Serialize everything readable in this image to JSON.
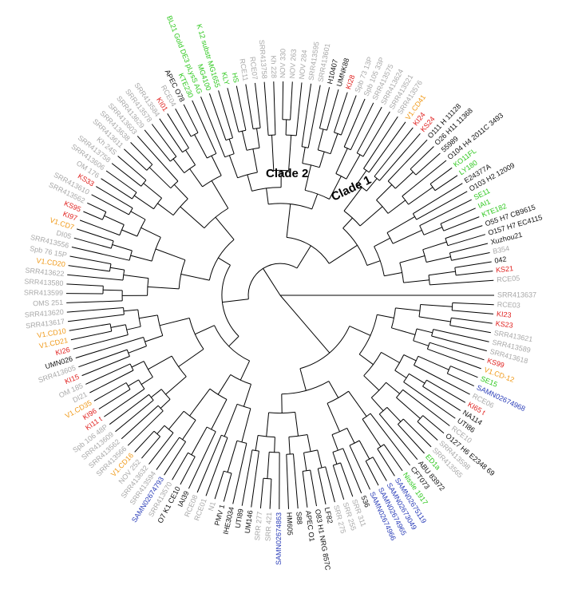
{
  "colors": {
    "black": "#111111",
    "gray": "#a9a9a9",
    "red": "#e0201e",
    "orange": "#f09a1a",
    "green": "#2ec81e",
    "blue": "#2a3db8"
  },
  "clades": [
    {
      "name": "Clade 2"
    },
    {
      "name": "Clade 1"
    }
  ],
  "leaves": [
    {
      "label": "SRR413637",
      "color": "gray"
    },
    {
      "label": "RCE03",
      "color": "gray"
    },
    {
      "label": "KI23",
      "color": "red"
    },
    {
      "label": "KS23",
      "color": "red"
    },
    {
      "label": "SRR413621",
      "color": "gray"
    },
    {
      "label": "SRR413589",
      "color": "gray"
    },
    {
      "label": "SRR413618",
      "color": "gray"
    },
    {
      "label": "KS99",
      "color": "red"
    },
    {
      "label": "V1.CD-12",
      "color": "orange"
    },
    {
      "label": "SE15",
      "color": "green"
    },
    {
      "label": "SAMN02674968",
      "color": "blue"
    },
    {
      "label": "RCE06",
      "color": "gray"
    },
    {
      "label": "KI65 t",
      "color": "red"
    },
    {
      "label": "NA114",
      "color": "black"
    },
    {
      "label": "UTI86",
      "color": "black"
    },
    {
      "label": "RCE10",
      "color": "gray"
    },
    {
      "label": "O127 H6 E2348 69",
      "color": "black"
    },
    {
      "label": "SRR413598",
      "color": "gray"
    },
    {
      "label": "SRR413565",
      "color": "gray"
    },
    {
      "label": "ED1a",
      "color": "green"
    },
    {
      "label": "ABU 83972",
      "color": "black"
    },
    {
      "label": "CFT073",
      "color": "black"
    },
    {
      "label": "Nissle 1917",
      "color": "green"
    },
    {
      "label": "SAMN02675119",
      "color": "blue"
    },
    {
      "label": "SAMN02673049",
      "color": "blue"
    },
    {
      "label": "SAMN02674965",
      "color": "blue"
    },
    {
      "label": "SAMN02674966",
      "color": "blue"
    },
    {
      "label": "536",
      "color": "black"
    },
    {
      "label": "SRR 311",
      "color": "gray"
    },
    {
      "label": "SRR 255",
      "color": "gray"
    },
    {
      "label": "SRR 275",
      "color": "gray"
    },
    {
      "label": "LF82",
      "color": "black"
    },
    {
      "label": "O83 H1 NRG 857C",
      "color": "black"
    },
    {
      "label": "APEC O1",
      "color": "black"
    },
    {
      "label": "S88",
      "color": "black"
    },
    {
      "label": "HM605",
      "color": "black"
    },
    {
      "label": "SAMN02674863",
      "color": "blue"
    },
    {
      "label": "SRR 421",
      "color": "gray"
    },
    {
      "label": "SRR 277",
      "color": "gray"
    },
    {
      "label": "UM146",
      "color": "black"
    },
    {
      "label": "UTI89",
      "color": "black"
    },
    {
      "label": "IHE3034",
      "color": "black"
    },
    {
      "label": "PMV 1",
      "color": "black"
    },
    {
      "label": "N1",
      "color": "gray"
    },
    {
      "label": "RCE01",
      "color": "gray"
    },
    {
      "label": "RCE08",
      "color": "gray"
    },
    {
      "label": "IAI39",
      "color": "black"
    },
    {
      "label": "O7 K1 CE10",
      "color": "black"
    },
    {
      "label": "SRR413570",
      "color": "gray"
    },
    {
      "label": "SAMN02674793",
      "color": "blue"
    },
    {
      "label": "SRR413594",
      "color": "gray"
    },
    {
      "label": "SRR413632",
      "color": "gray"
    },
    {
      "label": "NOV 252",
      "color": "gray"
    },
    {
      "label": "V1.CD16",
      "color": "orange"
    },
    {
      "label": "SRR413566",
      "color": "gray"
    },
    {
      "label": "SRR413562",
      "color": "gray"
    },
    {
      "label": "SRR413609",
      "color": "gray"
    },
    {
      "label": "Spb 106 48P",
      "color": "gray"
    },
    {
      "label": "KI11 t",
      "color": "red"
    },
    {
      "label": "KI96",
      "color": "red"
    },
    {
      "label": "V1.CD35",
      "color": "orange"
    },
    {
      "label": "DI21",
      "color": "gray"
    },
    {
      "label": "OM 185",
      "color": "gray"
    },
    {
      "label": "KI15",
      "color": "red"
    },
    {
      "label": "SRR413605",
      "color": "gray"
    },
    {
      "label": "UMN026",
      "color": "black"
    },
    {
      "label": "KI26",
      "color": "red"
    },
    {
      "label": "V1.CD21",
      "color": "orange"
    },
    {
      "label": "V1.CD10",
      "color": "orange"
    },
    {
      "label": "SRR413617",
      "color": "gray"
    },
    {
      "label": "SRR413620",
      "color": "gray"
    },
    {
      "label": "OMS 251",
      "color": "gray"
    },
    {
      "label": "SRR413599",
      "color": "gray"
    },
    {
      "label": "SRR413580",
      "color": "gray"
    },
    {
      "label": "SRR413622",
      "color": "gray"
    },
    {
      "label": "V1.CD20",
      "color": "orange"
    },
    {
      "label": "Spb 76 15P",
      "color": "gray"
    },
    {
      "label": "SRR413556",
      "color": "gray"
    },
    {
      "label": "DI05",
      "color": "gray"
    },
    {
      "label": "V1.CD7",
      "color": "orange"
    },
    {
      "label": "KI97",
      "color": "red"
    },
    {
      "label": "KS95",
      "color": "red"
    },
    {
      "label": "SRR413562",
      "color": "gray"
    },
    {
      "label": "SRR413610",
      "color": "gray"
    },
    {
      "label": "KS33",
      "color": "red"
    },
    {
      "label": "OM 176",
      "color": "gray"
    },
    {
      "label": "SRR413606",
      "color": "gray"
    },
    {
      "label": "SRR413758",
      "color": "gray"
    },
    {
      "label": "Kh 24S",
      "color": "gray"
    },
    {
      "label": "SRR413611",
      "color": "gray"
    },
    {
      "label": "SRR413638",
      "color": "gray"
    },
    {
      "label": "SRR413603",
      "color": "gray"
    },
    {
      "label": "SRR413629",
      "color": "gray"
    },
    {
      "label": "SRR413578",
      "color": "gray"
    },
    {
      "label": "SRR413584",
      "color": "gray"
    },
    {
      "label": "KI01",
      "color": "red"
    },
    {
      "label": "RCE04",
      "color": "gray"
    },
    {
      "label": "APEC O78",
      "color": "black"
    },
    {
      "label": "KTE230",
      "color": "green"
    },
    {
      "label": "BL21 Gold DE3 pLysS AG",
      "color": "green"
    },
    {
      "label": "MG4100",
      "color": "green"
    },
    {
      "label": "K 12 substr MG1655",
      "color": "green"
    },
    {
      "label": "KLY",
      "color": "green"
    },
    {
      "label": "HS",
      "color": "green"
    },
    {
      "label": "RCE11",
      "color": "gray"
    },
    {
      "label": "RCE07",
      "color": "gray"
    },
    {
      "label": "SRR413758",
      "color": "gray"
    },
    {
      "label": "Kh 228",
      "color": "gray"
    },
    {
      "label": "NOV 330",
      "color": "gray"
    },
    {
      "label": "NOV 263",
      "color": "gray"
    },
    {
      "label": "NOV 284",
      "color": "gray"
    },
    {
      "label": "SRR413595",
      "color": "gray"
    },
    {
      "label": "SRR413601",
      "color": "gray"
    },
    {
      "label": "H10407",
      "color": "black"
    },
    {
      "label": "UMNK88",
      "color": "black"
    },
    {
      "label": "KI28",
      "color": "red"
    },
    {
      "label": "Spb 73 13P",
      "color": "gray"
    },
    {
      "label": "Spb 105 33P",
      "color": "gray"
    },
    {
      "label": "SRR413575",
      "color": "gray"
    },
    {
      "label": "SRR413624",
      "color": "gray"
    },
    {
      "label": "SRR413521",
      "color": "gray"
    },
    {
      "label": "SRR413576",
      "color": "gray"
    },
    {
      "label": "V1.CD41",
      "color": "orange"
    },
    {
      "label": "KI24",
      "color": "red"
    },
    {
      "label": "KS24",
      "color": "red"
    },
    {
      "label": "O111 H 11128",
      "color": "black"
    },
    {
      "label": "O26 H11 11368",
      "color": "black"
    },
    {
      "label": "55989",
      "color": "black"
    },
    {
      "label": "O104 H4 2011C 3493",
      "color": "black"
    },
    {
      "label": "KO11FL",
      "color": "green"
    },
    {
      "label": "LY180",
      "color": "green"
    },
    {
      "label": "E24377A",
      "color": "black"
    },
    {
      "label": "O103 H2 12009",
      "color": "black"
    },
    {
      "label": "SE11",
      "color": "green"
    },
    {
      "label": "IAI1",
      "color": "green"
    },
    {
      "label": "KTE182",
      "color": "green"
    },
    {
      "label": "O55 H7 CB9615",
      "color": "black"
    },
    {
      "label": "O157 H7 EC4115",
      "color": "black"
    },
    {
      "label": "Xuzhou21",
      "color": "black"
    },
    {
      "label": "B354",
      "color": "gray"
    },
    {
      "label": "042",
      "color": "black"
    },
    {
      "label": "KS21",
      "color": "red"
    },
    {
      "label": "RCE05",
      "color": "gray"
    }
  ]
}
